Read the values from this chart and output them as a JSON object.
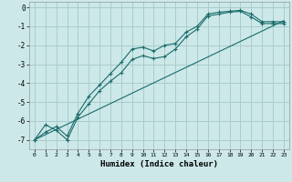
{
  "title": "",
  "xlabel": "Humidex (Indice chaleur)",
  "xlim": [
    -0.5,
    23.5
  ],
  "ylim": [
    -7.5,
    0.3
  ],
  "background_color": "#cce8e8",
  "grid_color": "#aacccc",
  "line_color": "#1a6b6b",
  "line1_x": [
    0,
    1,
    2,
    3,
    4,
    5,
    6,
    7,
    8,
    9,
    10,
    11,
    12,
    13,
    14,
    15,
    16,
    17,
    18,
    19,
    20,
    21,
    22,
    23
  ],
  "line1_y": [
    -7.0,
    -6.6,
    -6.3,
    -6.8,
    -5.6,
    -4.7,
    -4.1,
    -3.5,
    -2.9,
    -2.2,
    -2.1,
    -2.3,
    -2.0,
    -1.9,
    -1.3,
    -1.0,
    -0.35,
    -0.25,
    -0.2,
    -0.15,
    -0.35,
    -0.75,
    -0.75,
    -0.75
  ],
  "line2_x": [
    0,
    1,
    2,
    3,
    4,
    5,
    6,
    7,
    8,
    9,
    10,
    11,
    12,
    13,
    14,
    15,
    16,
    17,
    18,
    19,
    20,
    21,
    22,
    23
  ],
  "line2_y": [
    -7.0,
    -6.2,
    -6.5,
    -7.0,
    -5.8,
    -5.1,
    -4.4,
    -3.9,
    -3.45,
    -2.75,
    -2.55,
    -2.7,
    -2.6,
    -2.2,
    -1.55,
    -1.15,
    -0.45,
    -0.35,
    -0.25,
    -0.2,
    -0.5,
    -0.85,
    -0.85,
    -0.85
  ],
  "line3_x": [
    0,
    23
  ],
  "line3_y": [
    -7.0,
    -0.7
  ],
  "xticks": [
    0,
    1,
    2,
    3,
    4,
    5,
    6,
    7,
    8,
    9,
    10,
    11,
    12,
    13,
    14,
    15,
    16,
    17,
    18,
    19,
    20,
    21,
    22,
    23
  ],
  "yticks": [
    0,
    -1,
    -2,
    -3,
    -4,
    -5,
    -6,
    -7
  ],
  "ytick_labels": [
    "0",
    "-1",
    "-2",
    "-3",
    "-4",
    "-5",
    "-6",
    "-7"
  ]
}
